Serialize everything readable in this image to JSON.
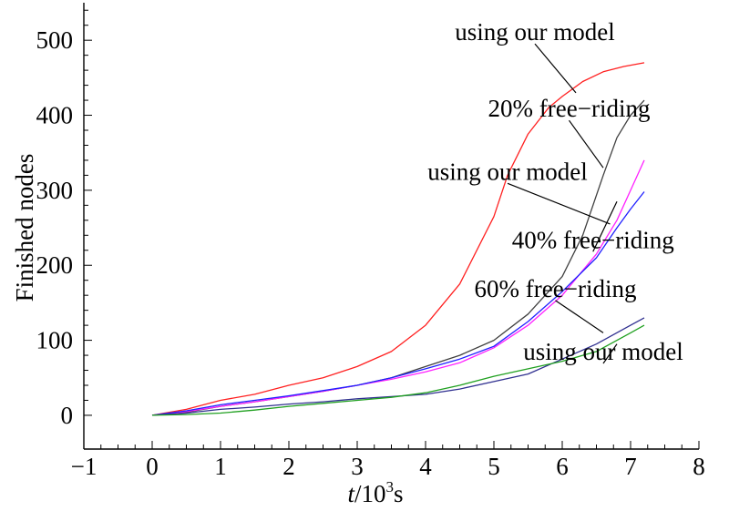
{
  "chart_data": {
    "type": "line",
    "xlabel": {
      "italic": "t",
      "base": "/10",
      "sup": "3",
      "tail": "s"
    },
    "ylabel": "Finished nodes",
    "xlim": [
      -1,
      8
    ],
    "ylim": [
      -45,
      550
    ],
    "xticks": [
      -1,
      0,
      1,
      2,
      3,
      4,
      5,
      6,
      7,
      8
    ],
    "yticks": [
      0,
      100,
      200,
      300,
      400,
      500
    ],
    "grid": false,
    "series": [
      {
        "color": "#ff2020",
        "x": [
          0,
          0.5,
          1,
          1.5,
          2,
          2.5,
          3,
          3.5,
          4,
          4.5,
          5,
          5.2,
          5.5,
          5.8,
          6,
          6.3,
          6.6,
          6.9,
          7.2
        ],
        "y": [
          0,
          8,
          20,
          28,
          40,
          50,
          65,
          85,
          120,
          175,
          265,
          320,
          375,
          410,
          425,
          445,
          458,
          465,
          470
        ]
      },
      {
        "color": "#404040",
        "x": [
          0,
          0.5,
          1,
          1.5,
          2,
          2.5,
          3,
          3.5,
          4,
          4.5,
          5,
          5.5,
          6,
          6.3,
          6.6,
          6.8,
          7,
          7.2
        ],
        "y": [
          0,
          4,
          12,
          18,
          25,
          32,
          40,
          50,
          65,
          80,
          100,
          135,
          185,
          240,
          320,
          370,
          400,
          420
        ]
      },
      {
        "color": "#ff20ff",
        "x": [
          0,
          0.5,
          1,
          1.5,
          2,
          2.5,
          3,
          3.5,
          4,
          4.5,
          5,
          5.5,
          6,
          6.5,
          6.8,
          7,
          7.2
        ],
        "y": [
          0,
          5,
          12,
          18,
          25,
          32,
          40,
          48,
          58,
          70,
          90,
          120,
          160,
          215,
          260,
          300,
          340
        ]
      },
      {
        "color": "#2020ff",
        "x": [
          0,
          0.5,
          1,
          1.5,
          2,
          2.5,
          3,
          3.5,
          4,
          4.5,
          5,
          5.5,
          6,
          6.5,
          6.8,
          7,
          7.2
        ],
        "y": [
          0,
          6,
          14,
          20,
          26,
          33,
          40,
          50,
          62,
          75,
          92,
          125,
          165,
          210,
          250,
          275,
          298
        ]
      },
      {
        "color": "#303090",
        "x": [
          0,
          0.5,
          1,
          1.5,
          2,
          2.5,
          3,
          3.5,
          4,
          4.5,
          5,
          5.5,
          6,
          6.5,
          7,
          7.2
        ],
        "y": [
          0,
          3,
          8,
          11,
          15,
          18,
          22,
          25,
          28,
          35,
          45,
          55,
          75,
          95,
          120,
          130
        ]
      },
      {
        "color": "#20a020",
        "x": [
          0,
          0.5,
          1,
          1.5,
          2,
          2.5,
          3,
          3.5,
          4,
          4.5,
          5,
          5.5,
          6,
          6.5,
          7,
          7.2
        ],
        "y": [
          0,
          1,
          3,
          7,
          12,
          16,
          20,
          24,
          30,
          40,
          52,
          62,
          72,
          85,
          110,
          120
        ]
      }
    ],
    "annotations": [
      {
        "text": "using our model",
        "x": 5.6,
        "y": 500,
        "target": [
          6.2,
          430
        ]
      },
      {
        "text": "20% free−riding",
        "x": 6.1,
        "y": 398,
        "target": [
          6.6,
          330
        ]
      },
      {
        "text": "using our model",
        "x": 5.2,
        "y": 314,
        "target": [
          6.7,
          255
        ]
      },
      {
        "text": "40% free−riding",
        "x": 6.45,
        "y": 223,
        "target": [
          6.8,
          285
        ]
      },
      {
        "text": "60% free−riding",
        "x": 5.9,
        "y": 158,
        "target": [
          6.6,
          110
        ]
      },
      {
        "text": "using our model",
        "x": 6.6,
        "y": 74,
        "target": [
          6.8,
          95
        ]
      }
    ]
  }
}
